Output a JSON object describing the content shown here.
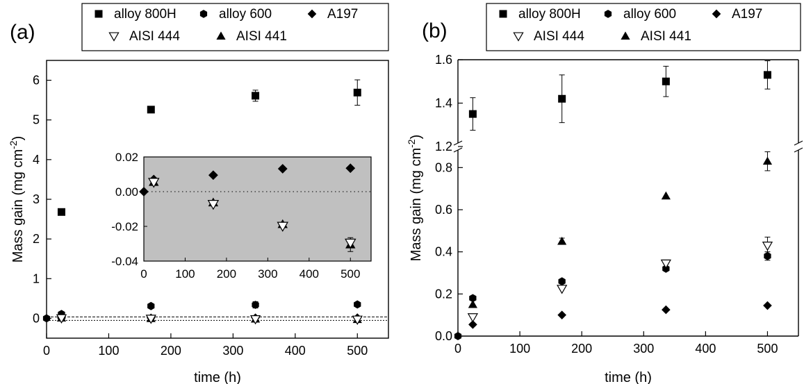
{
  "panel_labels": [
    "(a)",
    "(b)"
  ],
  "legend": [
    {
      "label": "alloy 800H",
      "marker": "square"
    },
    {
      "label": "alloy 600",
      "marker": "hexagon"
    },
    {
      "label": "A197",
      "marker": "diamond"
    },
    {
      "label": "AISI 444",
      "marker": "triangle-down-open"
    },
    {
      "label": "AISI 441",
      "marker": "triangle-up"
    }
  ],
  "chart_data": [
    {
      "type": "scatter",
      "panel": "(a)",
      "xlabel": "time (h)",
      "ylabel": "Mass gain (mg cm^-2)",
      "xlim": [
        0,
        550
      ],
      "ylim": [
        -0.5,
        6.5
      ],
      "xticks": [
        0,
        100,
        200,
        300,
        400,
        500
      ],
      "yticks": [
        0,
        1,
        2,
        3,
        4,
        5,
        6
      ],
      "grid": false,
      "reference_lines": [
        0
      ],
      "series": [
        {
          "name": "alloy 800H",
          "marker": "square",
          "points": [
            {
              "x": 24,
              "y": 2.68
            },
            {
              "x": 168,
              "y": 5.26,
              "err": 0.08
            },
            {
              "x": 336,
              "y": 5.61,
              "err": 0.14
            },
            {
              "x": 500,
              "y": 5.69,
              "err": 0.32
            }
          ]
        },
        {
          "name": "alloy 600",
          "marker": "hexagon",
          "points": [
            {
              "x": 0,
              "y": 0
            },
            {
              "x": 24,
              "y": 0.11,
              "err": 0.04
            },
            {
              "x": 168,
              "y": 0.31
            },
            {
              "x": 336,
              "y": 0.34,
              "err": 0.08
            },
            {
              "x": 500,
              "y": 0.35
            }
          ]
        },
        {
          "name": "A197",
          "marker": "diamond",
          "points": [
            {
              "x": 24,
              "y": 0.007
            },
            {
              "x": 168,
              "y": 0.01
            },
            {
              "x": 336,
              "y": 0.013
            },
            {
              "x": 500,
              "y": 0.014
            }
          ]
        },
        {
          "name": "AISI 444",
          "marker": "triangle-down-open",
          "points": [
            {
              "x": 24,
              "y": 0.005
            },
            {
              "x": 168,
              "y": -0.007
            },
            {
              "x": 336,
              "y": -0.02
            },
            {
              "x": 500,
              "y": -0.03
            }
          ]
        },
        {
          "name": "AISI 441",
          "marker": "triangle-up",
          "points": [
            {
              "x": 24,
              "y": 0.006
            },
            {
              "x": 168,
              "y": -0.006
            },
            {
              "x": 336,
              "y": -0.019
            },
            {
              "x": 500,
              "y": -0.03
            }
          ]
        }
      ],
      "inset": {
        "xlim": [
          0,
          550
        ],
        "ylim": [
          -0.04,
          0.02
        ],
        "xticks": [
          0,
          100,
          200,
          300,
          400,
          500
        ],
        "yticks": [
          -0.04,
          -0.02,
          0.0,
          0.02
        ],
        "ytick_labels": [
          "-0.04",
          "-0.02",
          "0.00",
          "0.02"
        ],
        "background": "#c0c0c0",
        "reference_lines": [
          0
        ],
        "series": [
          {
            "name": "A197",
            "marker": "diamond",
            "points": [
              {
                "x": 0,
                "y": 0
              },
              {
                "x": 24,
                "y": 0.007
              },
              {
                "x": 168,
                "y": 0.0095
              },
              {
                "x": 336,
                "y": 0.0132
              },
              {
                "x": 500,
                "y": 0.0135
              }
            ]
          },
          {
            "name": "AISI 444",
            "marker": "triangle-down-open",
            "points": [
              {
                "x": 24,
                "y": 0.0055
              },
              {
                "x": 168,
                "y": -0.0072
              },
              {
                "x": 336,
                "y": -0.0198
              },
              {
                "x": 500,
                "y": -0.0295,
                "err": 0.002
              }
            ]
          },
          {
            "name": "AISI 441",
            "marker": "triangle-up",
            "points": [
              {
                "x": 24,
                "y": 0.0055
              },
              {
                "x": 168,
                "y": -0.0063
              },
              {
                "x": 336,
                "y": -0.0188
              },
              {
                "x": 500,
                "y": -0.0305,
                "err": 0.004
              }
            ]
          }
        ]
      }
    },
    {
      "type": "scatter",
      "panel": "(b)",
      "xlabel": "time (h)",
      "ylabel": "Mass gain (mg cm^-2)",
      "xlim": [
        0,
        550
      ],
      "ylim": [
        0,
        1.6
      ],
      "axis_break": [
        0.9,
        1.2
      ],
      "xticks": [
        0,
        100,
        200,
        300,
        400,
        500
      ],
      "yticks": [
        0.0,
        0.2,
        0.4,
        0.6,
        0.8,
        1.2,
        1.4,
        1.6
      ],
      "ytick_labels": [
        "0.0",
        "0.2",
        "0.4",
        "0.6",
        "0.8",
        "1.2",
        "1.4",
        "1.6"
      ],
      "grid": false,
      "series": [
        {
          "name": "alloy 800H",
          "marker": "square",
          "points": [
            {
              "x": 24,
              "y": 1.35,
              "err": 0.075
            },
            {
              "x": 168,
              "y": 1.42,
              "err": 0.11
            },
            {
              "x": 336,
              "y": 1.5,
              "err": 0.07
            },
            {
              "x": 500,
              "y": 1.53,
              "err": 0.065
            }
          ]
        },
        {
          "name": "alloy 600",
          "marker": "hexagon",
          "points": [
            {
              "x": 0,
              "y": 0
            },
            {
              "x": 24,
              "y": 0.18
            },
            {
              "x": 168,
              "y": 0.26
            },
            {
              "x": 336,
              "y": 0.32
            },
            {
              "x": 500,
              "y": 0.38,
              "err": 0.02
            }
          ]
        },
        {
          "name": "A197",
          "marker": "diamond",
          "points": [
            {
              "x": 24,
              "y": 0.055
            },
            {
              "x": 168,
              "y": 0.1
            },
            {
              "x": 336,
              "y": 0.125
            },
            {
              "x": 500,
              "y": 0.145
            }
          ]
        },
        {
          "name": "AISI 444",
          "marker": "triangle-down-open",
          "points": [
            {
              "x": 24,
              "y": 0.09
            },
            {
              "x": 168,
              "y": 0.225
            },
            {
              "x": 336,
              "y": 0.345
            },
            {
              "x": 500,
              "y": 0.43,
              "err": 0.04
            }
          ]
        },
        {
          "name": "AISI 441",
          "marker": "triangle-up",
          "points": [
            {
              "x": 24,
              "y": 0.15
            },
            {
              "x": 168,
              "y": 0.45,
              "err": 0.015
            },
            {
              "x": 336,
              "y": 0.665
            },
            {
              "x": 500,
              "y": 0.83,
              "err": 0.045
            }
          ]
        }
      ]
    }
  ]
}
